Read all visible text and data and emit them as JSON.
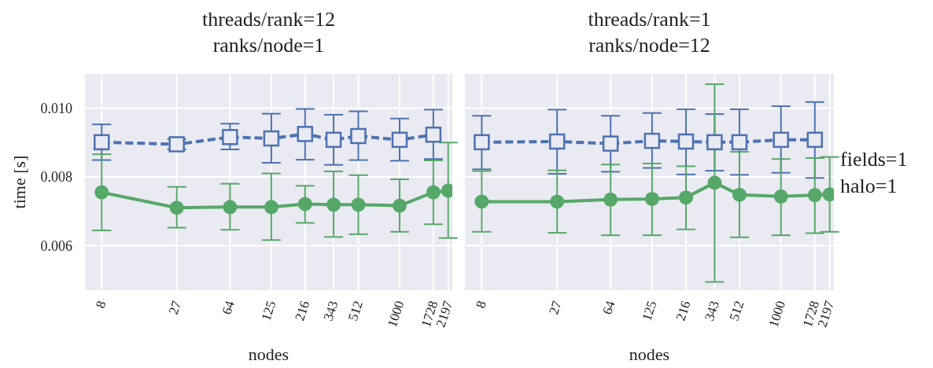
{
  "chart_data": [
    {
      "type": "line",
      "title": "threads/rank=12\nranks/node=1",
      "xlabel": "nodes",
      "ylabel": "time [s]",
      "log": "x",
      "grid": true,
      "xlim": [
        6.1,
        2350
      ],
      "ylim": [
        0.0047,
        0.011
      ],
      "x": [
        8,
        27,
        64,
        125,
        216,
        343,
        512,
        1000,
        1728,
        2197
      ],
      "xticks": [
        8,
        27,
        64,
        125,
        216,
        343,
        512,
        1000,
        1728,
        2197
      ],
      "yticks": [
        {
          "value": 0.006,
          "label": "0.006"
        },
        {
          "value": 0.008,
          "label": "0.008"
        },
        {
          "value": 0.01,
          "label": "0.010"
        }
      ],
      "series": [
        {
          "color": "#4c72b0",
          "marker": "square",
          "line_style": "dashed",
          "values": [
            0.00901,
            0.00895,
            0.00916,
            0.00912,
            0.00925,
            0.00908,
            0.00919,
            0.00908,
            0.00923,
            null
          ],
          "errors": [
            [
              0.00849,
              0.00953
            ],
            [
              0.0088,
              0.0091
            ],
            [
              0.0088,
              0.00955
            ],
            [
              0.00841,
              0.00984
            ],
            [
              0.0085,
              0.00998
            ],
            [
              0.00835,
              0.00981
            ],
            [
              0.00849,
              0.00991
            ],
            [
              0.00847,
              0.0097
            ],
            [
              0.00852,
              0.00996
            ],
            null
          ]
        },
        {
          "color": "#55a868",
          "marker": "circle",
          "line_style": "solid",
          "values": [
            0.00755,
            0.0071,
            0.00712,
            0.00712,
            0.00721,
            0.00719,
            0.00719,
            0.00716,
            0.00755,
            0.0076
          ],
          "errors": [
            [
              0.00644,
              0.00866
            ],
            [
              0.00652,
              0.00771
            ],
            [
              0.00646,
              0.0078
            ],
            [
              0.00616,
              0.0081
            ],
            [
              0.00666,
              0.00774
            ],
            [
              0.00625,
              0.00816
            ],
            [
              0.00633,
              0.00805
            ],
            [
              0.0064,
              0.00793
            ],
            [
              0.00662,
              0.00848
            ],
            [
              0.00622,
              0.009
            ]
          ]
        }
      ]
    },
    {
      "type": "line",
      "title": "threads/rank=1\nranks/node=12",
      "xlabel": "nodes",
      "log": "x",
      "grid": true,
      "tick_labels": "x",
      "xlim": [
        6.1,
        2350
      ],
      "ylim": [
        0.0047,
        0.011
      ],
      "x": [
        8,
        27,
        64,
        125,
        216,
        343,
        512,
        1000,
        1728,
        2197
      ],
      "xticks": [
        8,
        27,
        64,
        125,
        216,
        343,
        512,
        1000,
        1728,
        2197
      ],
      "yticks": [
        0.006,
        0.008,
        0.01
      ],
      "annotations": [
        "fields=1\nhalo=1"
      ],
      "series": [
        {
          "color": "#4c72b0",
          "marker": "square",
          "line_style": "dashed",
          "values": [
            0.00901,
            0.00903,
            0.00897,
            0.00905,
            0.00903,
            0.00901,
            0.00901,
            0.00908,
            0.00908,
            null
          ],
          "errors": [
            [
              0.00822,
              0.00978
            ],
            [
              0.00809,
              0.00996
            ],
            [
              0.00815,
              0.00978
            ],
            [
              0.00826,
              0.00986
            ],
            [
              0.00807,
              0.00997
            ],
            [
              0.00818,
              0.00983
            ],
            [
              0.00806,
              0.00997
            ],
            [
              0.00812,
              0.01006
            ],
            [
              0.00797,
              0.01018
            ],
            null
          ]
        },
        {
          "color": "#55a868",
          "marker": "circle",
          "line_style": "solid",
          "values": [
            0.00728,
            0.00728,
            0.00734,
            0.00736,
            0.0074,
            0.00783,
            0.00748,
            0.00743,
            0.00747,
            0.00749
          ],
          "errors": [
            [
              0.0064,
              0.00817
            ],
            [
              0.00637,
              0.00819
            ],
            [
              0.0063,
              0.00836
            ],
            [
              0.0063,
              0.00839
            ],
            [
              0.00647,
              0.00831
            ],
            [
              0.00494,
              0.0107
            ],
            [
              0.00624,
              0.00873
            ],
            [
              0.0063,
              0.00852
            ],
            [
              0.00636,
              0.00855
            ],
            [
              0.0064,
              0.00858
            ]
          ]
        }
      ]
    }
  ]
}
